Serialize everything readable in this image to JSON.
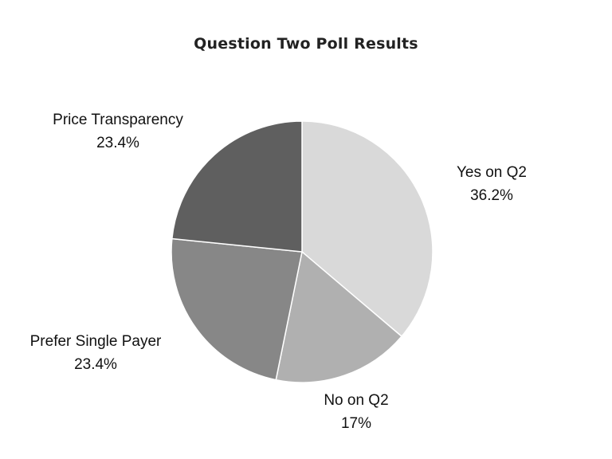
{
  "chart_data": {
    "type": "pie",
    "title": "Question Two Poll Results",
    "slices": [
      {
        "label": "Yes on Q2",
        "value": 36.2,
        "value_label": "36.2%",
        "color": "#d9d9d9"
      },
      {
        "label": "No on Q2",
        "value": 17,
        "value_label": "17%",
        "color": "#b0b0b0"
      },
      {
        "label": "Prefer Single Payer",
        "value": 23.4,
        "value_label": "23.4%",
        "color": "#878787"
      },
      {
        "label": "Price Transparency",
        "value": 23.4,
        "value_label": "23.4%",
        "color": "#5f5f5f"
      }
    ],
    "start_angle": "12 o'clock",
    "direction": "clockwise",
    "legend": "none",
    "data_labels": "outside"
  }
}
